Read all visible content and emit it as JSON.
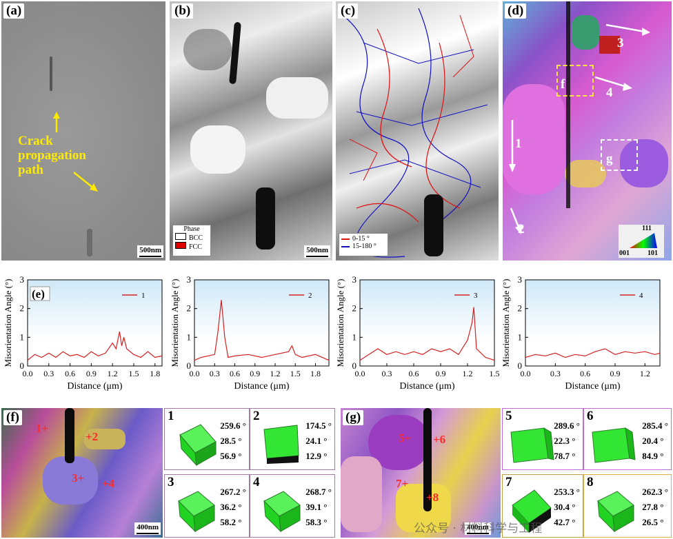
{
  "panels": {
    "a": {
      "tag": "(a)",
      "crack_text": [
        "Crack",
        "propagation",
        "path"
      ],
      "scale": "500nm"
    },
    "b": {
      "tag": "(b)",
      "scale": "500nm",
      "legend_title": "Phase",
      "legend": [
        "BCC",
        "FCC"
      ]
    },
    "c": {
      "tag": "(c)",
      "legend": [
        "0-15 °",
        "15-180 °"
      ]
    },
    "d": {
      "tag": "(d)",
      "labels": [
        "1",
        "2",
        "3",
        "4",
        "f",
        "g"
      ],
      "ipf": [
        "111",
        "001",
        "101"
      ]
    },
    "e": {
      "tag": "(e)"
    },
    "f": {
      "tag": "(f)",
      "marks": [
        "1+",
        "+2",
        "3+",
        "+4"
      ],
      "scale": "400nm",
      "cubes": [
        {
          "num": "1",
          "angles": [
            "259.6 °",
            "28.5 °",
            "56.9 °"
          ]
        },
        {
          "num": "2",
          "angles": [
            "174.5 °",
            "24.1 °",
            "12.9 °"
          ]
        },
        {
          "num": "3",
          "angles": [
            "267.2 °",
            "36.2 °",
            "58.2 °"
          ]
        },
        {
          "num": "4",
          "angles": [
            "268.7 °",
            "39.1 °",
            "58.3 °"
          ]
        }
      ]
    },
    "g": {
      "tag": "(g)",
      "marks": [
        "5+",
        "+6",
        "7+",
        "+8"
      ],
      "scale": "400nm",
      "cubes": [
        {
          "num": "5",
          "angles": [
            "289.6 °",
            "22.3 °",
            "78.7 °"
          ]
        },
        {
          "num": "6",
          "angles": [
            "285.4 °",
            "20.4 °",
            "84.9 °"
          ]
        },
        {
          "num": "7",
          "angles": [
            "253.3 °",
            "30.4 °",
            "42.7 °"
          ]
        },
        {
          "num": "8",
          "angles": [
            "262.3 °",
            "27.8 °",
            "26.5 °"
          ]
        }
      ]
    }
  },
  "watermark": "公众号 · 材料科学与工程",
  "colors": {
    "trace": "#d42020",
    "bg_top": "#cfe8f7",
    "grain_boundary_low": "#e01010",
    "grain_boundary_high": "#1010c0",
    "crack_label": "#ffeb00",
    "cube": "#22e622"
  },
  "chart_data": [
    {
      "type": "line",
      "ylabel": "Misorientation Angle (°)",
      "xlabel": "Distance (μm)",
      "ylim": [
        0,
        3
      ],
      "yticks": [
        "0",
        "1",
        "2",
        "3"
      ],
      "xlim": [
        0,
        1.9
      ],
      "xticks": [
        "0.0",
        "0.3",
        "0.6",
        "0.9",
        "1.2",
        "1.5",
        "1.8"
      ],
      "legend": "1",
      "series": [
        {
          "name": "1",
          "x": [
            0,
            0.1,
            0.2,
            0.3,
            0.4,
            0.5,
            0.6,
            0.7,
            0.8,
            0.9,
            1.0,
            1.1,
            1.2,
            1.25,
            1.3,
            1.33,
            1.36,
            1.4,
            1.5,
            1.6,
            1.7,
            1.8,
            1.9
          ],
          "y": [
            0.2,
            0.4,
            0.3,
            0.45,
            0.3,
            0.5,
            0.35,
            0.4,
            0.3,
            0.5,
            0.35,
            0.45,
            0.8,
            0.6,
            1.2,
            0.7,
            1.0,
            0.6,
            0.4,
            0.3,
            0.5,
            0.3,
            0.35
          ]
        }
      ]
    },
    {
      "type": "line",
      "ylabel": "Misorientation Angle (°)",
      "xlabel": "Distance (μm)",
      "ylim": [
        0,
        3
      ],
      "yticks": [
        "0",
        "1",
        "2",
        "3"
      ],
      "xlim": [
        0,
        2.0
      ],
      "xticks": [
        "0.0",
        "0.3",
        "0.6",
        "0.9",
        "1.2",
        "1.5",
        "1.8"
      ],
      "legend": "2",
      "series": [
        {
          "name": "2",
          "x": [
            0,
            0.1,
            0.2,
            0.3,
            0.35,
            0.4,
            0.45,
            0.5,
            0.6,
            0.8,
            1.0,
            1.2,
            1.4,
            1.45,
            1.5,
            1.6,
            1.8,
            2.0
          ],
          "y": [
            0.2,
            0.3,
            0.35,
            0.4,
            1.2,
            2.3,
            1.0,
            0.3,
            0.35,
            0.4,
            0.3,
            0.4,
            0.5,
            0.7,
            0.4,
            0.3,
            0.4,
            0.2
          ]
        }
      ]
    },
    {
      "type": "line",
      "ylabel": "Misorientation Angle (°)",
      "xlabel": "Distance (μm)",
      "ylim": [
        0,
        3
      ],
      "yticks": [
        "0",
        "1",
        "2",
        "3"
      ],
      "xlim": [
        0,
        1.5
      ],
      "xticks": [
        "0.0",
        "0.3",
        "0.6",
        "0.9",
        "1.2",
        "1.5"
      ],
      "legend": "3",
      "series": [
        {
          "name": "3",
          "x": [
            0,
            0.1,
            0.2,
            0.3,
            0.4,
            0.5,
            0.6,
            0.7,
            0.8,
            0.9,
            1.0,
            1.1,
            1.2,
            1.25,
            1.27,
            1.3,
            1.4,
            1.5
          ],
          "y": [
            0.2,
            0.4,
            0.6,
            0.4,
            0.5,
            0.4,
            0.5,
            0.4,
            0.6,
            0.5,
            0.6,
            0.4,
            0.9,
            1.5,
            2.05,
            0.6,
            0.3,
            0.2
          ]
        }
      ]
    },
    {
      "type": "line",
      "ylabel": "Misorientation Angle (°)",
      "xlabel": "Distance (μm)",
      "ylim": [
        0,
        3
      ],
      "yticks": [
        "0",
        "1",
        "2",
        "3"
      ],
      "xlim": [
        0,
        1.35
      ],
      "xticks": [
        "0.0",
        "0.3",
        "0.6",
        "0.9",
        "1.2"
      ],
      "legend": "4",
      "series": [
        {
          "name": "4",
          "x": [
            0,
            0.1,
            0.2,
            0.3,
            0.4,
            0.5,
            0.6,
            0.7,
            0.8,
            0.9,
            1.0,
            1.1,
            1.2,
            1.3,
            1.35
          ],
          "y": [
            0.3,
            0.4,
            0.35,
            0.45,
            0.3,
            0.4,
            0.35,
            0.5,
            0.6,
            0.4,
            0.5,
            0.45,
            0.5,
            0.4,
            0.45
          ]
        }
      ]
    }
  ]
}
